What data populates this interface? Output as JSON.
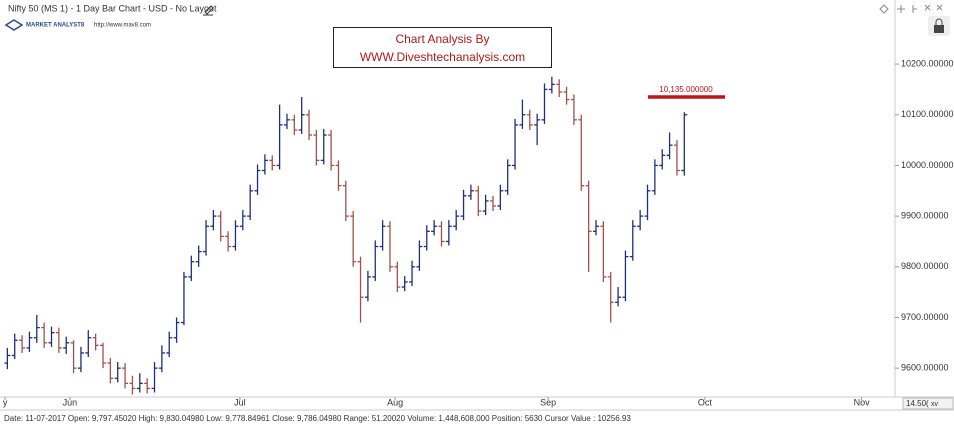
{
  "header": {
    "title": "Nifty 50 (MS 1) - 1 Day Bar Chart - USD - No Layout",
    "brand": "MARKET ANALYST8",
    "url": "http://www.mav8.com"
  },
  "watermark": {
    "line1": "Chart Analysis By",
    "line2": "WWW.Diveshtechanalysis.com"
  },
  "footer": {
    "status": "Date: 11-07-2017 Open: 9,797.45020 High: 9,830.04980 Low: 9,778.84961 Close: 9,786.04980 Range: 51.20020 Volume: 1,448,608,000 Position: 5630 Cursor Value : 10256.93",
    "zoom": "14.50(",
    "control": "xv"
  },
  "chart_data": {
    "type": "ohlc",
    "up_color": "#1f2f7a",
    "down_color": "#a0524a",
    "xlim": [
      0,
      121.5
    ],
    "ylim": [
      9547,
      10287
    ],
    "xticks": [
      {
        "value": 0.7,
        "label": "y"
      },
      {
        "value": 9.5,
        "label": "Jun"
      },
      {
        "value": 32.6,
        "label": "Jul"
      },
      {
        "value": 53.7,
        "label": "Aug"
      },
      {
        "value": 74.5,
        "label": "Sep"
      },
      {
        "value": 95.8,
        "label": "Oct"
      },
      {
        "value": 117.1,
        "label": "Nov"
      }
    ],
    "yticks": [
      {
        "value": 9600,
        "label": "9600.00000"
      },
      {
        "value": 9700,
        "label": "9700.00000"
      },
      {
        "value": 9800,
        "label": "9800.00000"
      },
      {
        "value": 9900,
        "label": "9900.00000"
      },
      {
        "value": 10000,
        "label": "10000.00000"
      },
      {
        "value": 10100,
        "label": "10100.00000"
      },
      {
        "value": 10200,
        "label": "10200.00000"
      }
    ],
    "annotation": {
      "value": 10135,
      "label": "10,135.000000",
      "color": "#c0141c"
    },
    "series": [
      {
        "x": [
          1,
          2,
          3,
          4,
          5,
          6,
          7,
          8,
          9,
          10,
          11,
          12,
          13,
          14,
          15,
          16,
          17,
          18,
          19,
          20,
          21,
          22,
          23,
          24,
          25,
          26,
          27,
          28,
          29,
          30,
          31,
          32,
          33,
          34,
          35,
          36,
          37,
          38,
          39,
          40,
          41,
          42,
          43,
          44,
          45,
          46,
          47,
          48,
          49,
          50,
          51,
          52,
          53,
          54,
          55,
          56,
          57,
          58,
          59,
          60,
          61,
          62,
          63,
          64,
          65,
          66,
          67,
          68,
          69,
          70,
          71,
          72,
          73,
          74,
          75,
          76,
          77,
          78,
          79,
          80,
          81,
          82,
          83,
          84,
          85,
          86,
          87,
          88,
          89,
          90,
          91,
          92,
          93
        ],
        "open": [
          9610,
          9625,
          9655,
          9640,
          9660,
          9680,
          9650,
          9670,
          9640,
          9650,
          9600,
          9630,
          9660,
          9645,
          9610,
          9580,
          9600,
          9570,
          9560,
          9570,
          9560,
          9600,
          9630,
          9660,
          9690,
          9780,
          9810,
          9830,
          9880,
          9900,
          9860,
          9840,
          9880,
          9900,
          9950,
          9990,
          10010,
          10000,
          10080,
          10090,
          10070,
          10100,
          10060,
          10010,
          10060,
          10000,
          9960,
          9900,
          9810,
          9740,
          9780,
          9840,
          9880,
          9800,
          9760,
          9770,
          9800,
          9840,
          9870,
          9880,
          9850,
          9880,
          9900,
          9940,
          9950,
          9910,
          9930,
          9920,
          9950,
          10000,
          10080,
          10100,
          10080,
          10090,
          10150,
          10160,
          10145,
          10130,
          10090,
          9960,
          9870,
          9880,
          9780,
          9730,
          9740,
          9820,
          9880,
          9900,
          9950,
          10000,
          10020,
          10040,
          9990
        ],
        "high": [
          9640,
          9668,
          9665,
          9672,
          9705,
          9690,
          9682,
          9680,
          9662,
          9655,
          9642,
          9675,
          9668,
          9650,
          9620,
          9612,
          9610,
          9585,
          9590,
          9580,
          9612,
          9645,
          9672,
          9700,
          9790,
          9822,
          9842,
          9892,
          9912,
          9910,
          9870,
          9892,
          9912,
          9962,
          10002,
          10022,
          10020,
          10120,
          10102,
          10100,
          10135,
          10110,
          10070,
          10072,
          10070,
          10010,
          9970,
          9910,
          9820,
          9792,
          9852,
          9892,
          9890,
          9810,
          9782,
          9812,
          9852,
          9882,
          9892,
          9890,
          9892,
          9912,
          9952,
          9962,
          9960,
          9942,
          9940,
          9962,
          10012,
          10092,
          10130,
          10110,
          10102,
          10162,
          10175,
          10170,
          10155,
          10140,
          10100,
          9970,
          9892,
          9890,
          9790,
          9760,
          9832,
          9892,
          9912,
          9962,
          10012,
          10032,
          10065,
          10050,
          10105
        ],
        "low": [
          9598,
          9618,
          9630,
          9632,
          9650,
          9640,
          9642,
          9630,
          9628,
          9590,
          9592,
          9622,
          9635,
          9600,
          9570,
          9572,
          9560,
          9548,
          9552,
          9550,
          9552,
          9592,
          9622,
          9650,
          9685,
          9772,
          9800,
          9822,
          9872,
          9850,
          9830,
          9832,
          9872,
          9892,
          9942,
          9982,
          9990,
          9992,
          10072,
          10060,
          10062,
          10050,
          10000,
          10002,
          9990,
          9950,
          9890,
          9800,
          9690,
          9732,
          9772,
          9832,
          9790,
          9750,
          9752,
          9762,
          9792,
          9832,
          9862,
          9840,
          9842,
          9872,
          9892,
          9932,
          9900,
          9902,
          9910,
          9912,
          9942,
          9992,
          10072,
          10070,
          10040,
          10082,
          10142,
          10135,
          10120,
          10080,
          9950,
          9790,
          9862,
          9770,
          9690,
          9722,
          9732,
          9812,
          9872,
          9892,
          9942,
          9992,
          10012,
          9980,
          9980
        ],
        "close": [
          9625,
          9655,
          9640,
          9660,
          9680,
          9650,
          9670,
          9640,
          9650,
          9600,
          9630,
          9660,
          9645,
          9610,
          9580,
          9600,
          9570,
          9560,
          9570,
          9560,
          9600,
          9630,
          9660,
          9690,
          9780,
          9810,
          9830,
          9880,
          9900,
          9860,
          9840,
          9880,
          9900,
          9950,
          9990,
          10010,
          10000,
          10080,
          10090,
          10070,
          10100,
          10060,
          10010,
          10060,
          10000,
          9960,
          9900,
          9810,
          9740,
          9780,
          9840,
          9880,
          9800,
          9760,
          9770,
          9800,
          9840,
          9870,
          9880,
          9850,
          9880,
          9900,
          9940,
          9950,
          9910,
          9930,
          9920,
          9950,
          10000,
          10080,
          10100,
          10080,
          10090,
          10150,
          10160,
          10145,
          10130,
          10090,
          9960,
          9870,
          9880,
          9780,
          9730,
          9740,
          9820,
          9880,
          9900,
          9950,
          10000,
          10020,
          10040,
          9990,
          10100
        ]
      }
    ]
  }
}
